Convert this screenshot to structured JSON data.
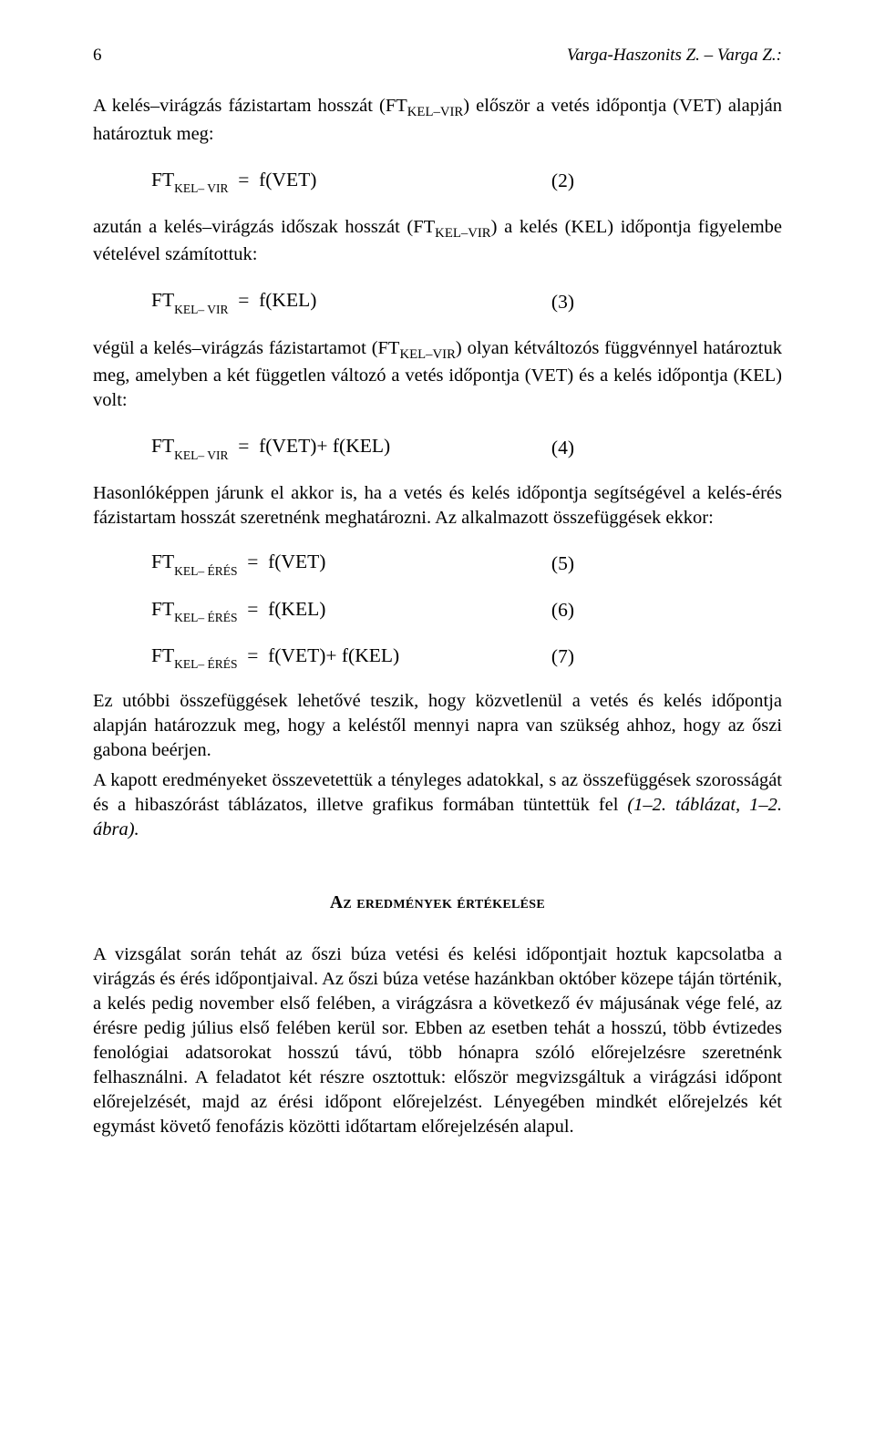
{
  "header": {
    "page": "6",
    "authors": "Varga-Haszonits Z. – Varga Z.:"
  },
  "p1": "A kelés–virágzás fázistartam hosszát (FTKEL–VIR) először a vetés időpontja (VET) alapján határoztuk meg:",
  "eq2": {
    "lhs_main": "FT",
    "lhs_sub": "KEL– VIR",
    "eqsign": "=",
    "rhs": "f(VET)",
    "num": "(2)"
  },
  "p2": "azután a kelés–virágzás időszak hosszát (FTKEL–VIR) a kelés (KEL) időpontja figyelembe vételével számítottuk:",
  "eq3": {
    "lhs_main": "FT",
    "lhs_sub": "KEL– VIR",
    "eqsign": "=",
    "rhs": "f(KEL)",
    "num": "(3)"
  },
  "p3": "végül a kelés–virágzás fázistartamot (FTKEL–VIR) olyan kétváltozós függvénnyel határoztuk meg, amelyben a két független változó a vetés időpontja (VET) és a kelés időpontja (KEL) volt:",
  "eq4": {
    "lhs_main": "FT",
    "lhs_sub": "KEL– VIR",
    "eqsign": "=",
    "rhs": "f(VET)+ f(KEL)",
    "num": "(4)"
  },
  "p4": "Hasonlóképpen járunk el akkor is, ha a vetés és kelés időpontja segítségével a kelés-érés fázistartam hosszát szeretnénk meghatározni. Az alkalmazott összefüggések ekkor:",
  "eq5": {
    "lhs_main": "FT",
    "lhs_sub": "KEL– ÉRÉS",
    "eqsign": "=",
    "rhs": "f(VET)",
    "num": "(5)"
  },
  "eq6": {
    "lhs_main": "FT",
    "lhs_sub": "KEL– ÉRÉS",
    "eqsign": "=",
    "rhs": "f(KEL)",
    "num": "(6)"
  },
  "eq7": {
    "lhs_main": "FT",
    "lhs_sub": "KEL– ÉRÉS",
    "eqsign": "=",
    "rhs": "f(VET)+ f(KEL)",
    "num": "(7)"
  },
  "p5": "Ez utóbbi összefüggések lehetővé teszik, hogy közvetlenül a vetés és kelés időpontja alapján határozzuk meg, hogy a keléstől mennyi napra van szükség ahhoz, hogy az őszi gabona beérjen.",
  "p6a": "A kapott eredményeket összevetettük a tényleges adatokkal, s az összefüggések szorosságát és a hibaszórást táblázatos, illetve grafikus formában tüntettük fel ",
  "p6b": "(1–2. táblázat, 1–2. ábra).",
  "section_title_bold": "A",
  "section_title_sc": "z eredmények értékelése",
  "p7": "A vizsgálat során tehát az őszi búza vetési és kelési időpontjait hoztuk kapcsolatba a virágzás és érés időpontjaival. Az őszi búza vetése hazánkban október közepe táján történik, a kelés pedig november első felében, a virágzásra a következő év májusának vége felé, az érésre pedig július első felében kerül sor. Ebben az esetben tehát a hosszú, több évtizedes fenológiai adatsorokat hosszú távú, több hónapra szóló előrejelzésre szeretnénk felhasználni. A feladatot két részre osztottuk: először megvizsgáltuk a virágzási időpont előrejelzését, majd az érési időpont előrejelzést. Lényegében mindkét előrejelzés két egymást követő fenofázis közötti időtartam előrejelzésén alapul."
}
